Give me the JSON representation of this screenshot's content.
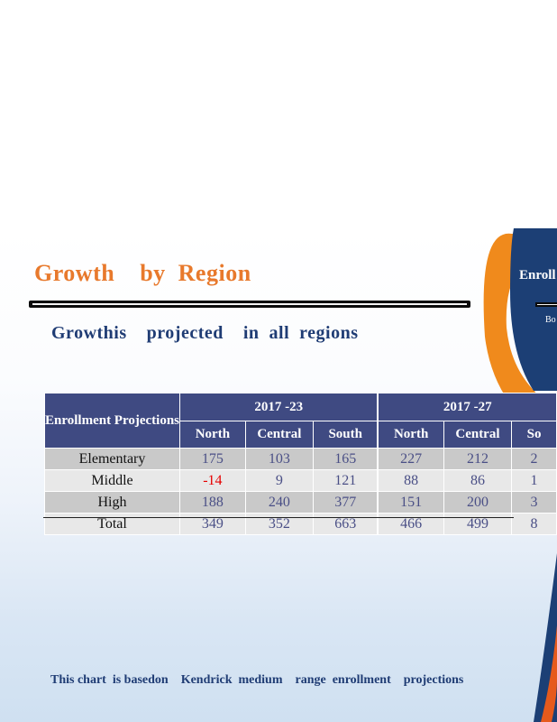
{
  "slide": {
    "title": "Growth    by  Region",
    "subtitle": "Growthis    projected    in  all  regions",
    "side_title": "Enroll",
    "side_subtitle": "Bo",
    "footer": "This chart  is basedon    Kendrick  medium    range  enrollment    projections",
    "colors": {
      "title": "#e8792c",
      "header_bg": "#3f4a82",
      "accent_blue": "#1f3c74",
      "accent_orange": "#f08a1c",
      "negative": "#e60000"
    }
  },
  "table": {
    "corner_label": "Enrollment Projections",
    "periods": [
      {
        "label": "2017 -23"
      },
      {
        "label": "2017 -27"
      }
    ],
    "regions_p1": [
      "North",
      "Central",
      "South"
    ],
    "regions_p2": [
      "North",
      "Central",
      "So"
    ],
    "rows": [
      {
        "label": "Elementary",
        "values": [
          "175",
          "103",
          "165",
          "227",
          "212",
          "2"
        ]
      },
      {
        "label": "Middle",
        "values": [
          "-14",
          "9",
          "121",
          "88",
          "86",
          "1"
        ]
      },
      {
        "label": "High",
        "values": [
          "188",
          "240",
          "377",
          "151",
          "200",
          "3"
        ]
      },
      {
        "label": "Total",
        "values": [
          "349",
          "352",
          "663",
          "466",
          "499",
          "8"
        ]
      }
    ]
  }
}
